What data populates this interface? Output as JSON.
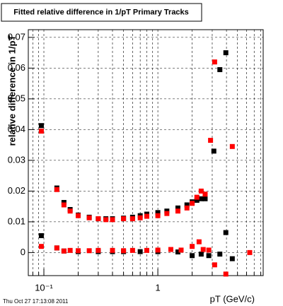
{
  "chart_data": {
    "type": "scatter",
    "title": "Fitted relative difference in 1/pT  Primary Tracks",
    "xlabel": "pT (GeV/c)",
    "ylabel": "relative difference in 1/pT",
    "date": "Thu Oct 27 17:13:08 2011",
    "xscale": "log",
    "grid": true,
    "xlim": [
      0.073,
      8.4
    ],
    "ylim": [
      -0.0075,
      0.0725
    ],
    "xticks": [
      {
        "value": 0.1,
        "label": "10⁻¹"
      },
      {
        "value": 1,
        "label": "1"
      }
    ],
    "x_minor_ticks": [
      0.08,
      0.09,
      0.2,
      0.3,
      0.4,
      0.5,
      0.6,
      0.7,
      0.8,
      0.9,
      2,
      3,
      4,
      5,
      6,
      7,
      8
    ],
    "yticks": [
      0,
      0.01,
      0.02,
      0.03,
      0.04,
      0.05,
      0.06,
      0.07
    ],
    "series": [
      {
        "color": "#000000",
        "x": [
          0.095,
          0.13,
          0.15,
          0.17,
          0.2,
          0.25,
          0.3,
          0.35,
          0.4,
          0.5,
          0.6,
          0.7,
          0.8,
          1.0,
          1.2,
          1.5,
          1.8,
          2.0,
          2.2,
          2.4,
          2.6,
          3.1,
          3.5,
          3.95,
          0.095,
          0.13,
          0.15,
          0.2,
          0.3,
          0.4,
          0.5,
          0.7,
          1.0,
          1.5,
          2.0,
          2.4,
          2.8,
          3.5,
          3.95,
          4.5
        ],
        "values": [
          0.0413,
          0.021,
          0.0163,
          0.014,
          0.0122,
          0.0115,
          0.011,
          0.011,
          0.011,
          0.0112,
          0.0115,
          0.012,
          0.0125,
          0.013,
          0.0135,
          0.0145,
          0.0155,
          0.0165,
          0.017,
          0.0175,
          0.0175,
          0.033,
          0.0595,
          0.065,
          0.0055,
          0.0015,
          0.0005,
          0.0003,
          0.0003,
          0.0003,
          0.0003,
          0.0003,
          0.0003,
          0.0002,
          -0.001,
          -0.0005,
          -0.001,
          -0.0005,
          0.0065,
          -0.002
        ]
      },
      {
        "color": "#ff0000",
        "x": [
          0.095,
          0.13,
          0.15,
          0.17,
          0.2,
          0.25,
          0.3,
          0.35,
          0.4,
          0.5,
          0.6,
          0.7,
          0.8,
          1.0,
          1.2,
          1.5,
          1.8,
          2.0,
          2.2,
          2.4,
          2.6,
          2.9,
          3.15,
          4.5,
          0.095,
          0.13,
          0.15,
          0.17,
          0.2,
          0.25,
          0.3,
          0.4,
          0.5,
          0.6,
          0.8,
          1.0,
          1.3,
          1.6,
          2.0,
          2.3,
          2.5,
          2.8,
          3.15,
          3.95,
          6.4
        ],
        "values": [
          0.0395,
          0.0205,
          0.0155,
          0.0135,
          0.012,
          0.0113,
          0.011,
          0.0107,
          0.0107,
          0.011,
          0.011,
          0.0113,
          0.0118,
          0.012,
          0.0127,
          0.0135,
          0.0145,
          0.016,
          0.018,
          0.02,
          0.019,
          0.0365,
          0.062,
          0.0345,
          0.002,
          0.0015,
          0.0005,
          0.0007,
          0.0006,
          0.0006,
          0.0007,
          0.0007,
          0.0006,
          0.0007,
          0.0007,
          0.0008,
          0.001,
          0.0008,
          0.002,
          0.0035,
          0.001,
          0.0008,
          -0.004,
          -0.007,
          0
        ]
      }
    ]
  }
}
